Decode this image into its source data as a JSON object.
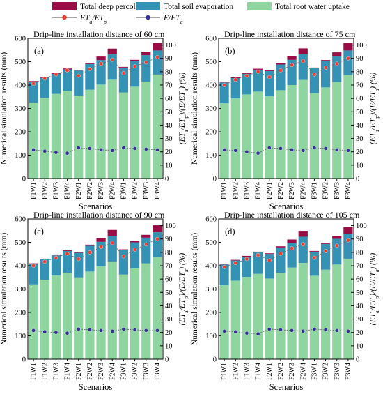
{
  "figure": {
    "legend": [
      {
        "label": "Total deep percolation",
        "kind": "swatch",
        "color": "#990c45"
      },
      {
        "label": "Total soil evaporation",
        "kind": "swatch",
        "color": "#3493b4"
      },
      {
        "label": "Total root water uptake",
        "kind": "swatch",
        "color": "#8fd5a0"
      },
      {
        "label": "ET_a/ET_p",
        "kind": "marker",
        "color": "#f03c2c"
      },
      {
        "label": "E/ET_a",
        "kind": "marker",
        "color": "#34309a"
      }
    ],
    "colors": {
      "deep_percolation": "#990c45",
      "soil_evaporation": "#3493b4",
      "root_uptake": "#8fd5a0",
      "eta_etp_marker": "#f03c2c",
      "e_eta_marker": "#34309a",
      "connector_line": "#6e6e6e"
    }
  },
  "chart_data": [
    {
      "type": "bar",
      "panel": "(a)",
      "title": "Drip-line installation distance of 60 cm",
      "xlabel": "Scenarios",
      "ylabel": "Numerical simulation results (mm)",
      "y2label_parts": [
        "(",
        "ET",
        "a",
        "/",
        "ET",
        "p",
        ")/(",
        "E/ET",
        "a",
        ") (%)"
      ],
      "ylim": [
        0,
        600
      ],
      "y_ticks": [
        0,
        100,
        200,
        300,
        400,
        500,
        600
      ],
      "y2lim": [
        0,
        105
      ],
      "y2_ticks": [
        0,
        10,
        20,
        30,
        40,
        50,
        60,
        70,
        80,
        90,
        100
      ],
      "categories": [
        "F1W1",
        "F1W2",
        "F1W3",
        "F1W4",
        "F2W1",
        "F2W2",
        "F2W3",
        "F2W4",
        "F3W1",
        "F3W2",
        "F3W3",
        "F3W4"
      ],
      "series": [
        {
          "name": "Total root water uptake",
          "values": [
            325,
            345,
            362,
            375,
            355,
            380,
            402,
            423,
            368,
            393,
            415,
            445
          ]
        },
        {
          "name": "Total soil evaporation",
          "values": [
            89,
            86,
            86,
            92,
            107,
            110,
            105,
            108,
            107,
            110,
            113,
            103
          ]
        },
        {
          "name": "Total deep percolation",
          "values": [
            3,
            4,
            5,
            4,
            3,
            5,
            15,
            25,
            3,
            5,
            15,
            32
          ]
        },
        {
          "name": "ET_a/ET_p",
          "axis": "y2",
          "values": [
            71,
            75,
            78,
            81,
            77,
            82,
            86,
            89,
            79,
            84,
            87,
            91
          ]
        },
        {
          "name": "E/ET_a",
          "axis": "y2",
          "values": [
            21.5,
            20.5,
            19.5,
            19,
            23,
            22.5,
            21.5,
            21,
            23,
            22.5,
            22,
            21.5
          ]
        }
      ]
    },
    {
      "type": "bar",
      "panel": "(b)",
      "title": "Drip-line installation distance of 75 cm",
      "xlabel": "Scenarios",
      "ylabel": "Numerical simulation results (mm)",
      "y2label_parts": [
        "(",
        "ET",
        "a",
        "/",
        "ET",
        "p",
        ")/(",
        "E/ET",
        "a",
        ") (%)"
      ],
      "ylim": [
        0,
        600
      ],
      "y_ticks": [
        0,
        100,
        200,
        300,
        400,
        500,
        600
      ],
      "y2lim": [
        0,
        105
      ],
      "y2_ticks": [
        0,
        10,
        20,
        30,
        40,
        50,
        60,
        70,
        80,
        90,
        100
      ],
      "categories": [
        "F1W1",
        "F1W2",
        "F1W3",
        "F1W4",
        "F2W1",
        "F2W2",
        "F2W3",
        "F2W4",
        "F3W1",
        "F3W2",
        "F3W3",
        "F3W4"
      ],
      "series": [
        {
          "name": "Total root water uptake",
          "values": [
            322,
            343,
            360,
            372,
            352,
            378,
            400,
            422,
            365,
            390,
            413,
            443
          ]
        },
        {
          "name": "Total soil evaporation",
          "values": [
            89,
            87,
            88,
            94,
            108,
            110,
            108,
            110,
            107,
            112,
            112,
            105
          ]
        },
        {
          "name": "Total deep percolation",
          "values": [
            2,
            3,
            4,
            4,
            3,
            5,
            15,
            25,
            3,
            5,
            15,
            32
          ]
        },
        {
          "name": "ET_a/ET_p",
          "axis": "y2",
          "values": [
            70,
            74,
            77,
            80,
            76,
            81,
            85,
            88,
            78,
            83,
            86,
            90
          ]
        },
        {
          "name": "E/ET_a",
          "axis": "y2",
          "values": [
            21.5,
            21,
            20,
            19,
            23,
            22.5,
            21.5,
            21,
            23,
            22.5,
            21.5,
            21
          ]
        }
      ]
    },
    {
      "type": "bar",
      "panel": "(c)",
      "title": "Drip-line installation distance of 90 cm",
      "xlabel": "Scenarios",
      "ylabel": "Numerical simulation results (mm)",
      "y2label_parts": [
        "(",
        "ET",
        "a",
        "/",
        "ET",
        "p",
        ")/(",
        "E/ET",
        "a",
        ") (%)"
      ],
      "ylim": [
        0,
        600
      ],
      "y_ticks": [
        0,
        100,
        200,
        300,
        400,
        500,
        600
      ],
      "y2lim": [
        0,
        105
      ],
      "y2_ticks": [
        0,
        10,
        20,
        30,
        40,
        50,
        60,
        70,
        80,
        90,
        100
      ],
      "categories": [
        "F1W1",
        "F1W2",
        "F1W3",
        "F1W4",
        "F2W1",
        "F2W2",
        "F2W3",
        "F2W4",
        "F3W1",
        "F3W2",
        "F3W3",
        "F3W4"
      ],
      "series": [
        {
          "name": "Total root water uptake",
          "values": [
            320,
            340,
            358,
            370,
            350,
            375,
            397,
            418,
            362,
            388,
            410,
            438
          ]
        },
        {
          "name": "Total soil evaporation",
          "values": [
            88,
            87,
            86,
            93,
            105,
            110,
            105,
            110,
            105,
            112,
            110,
            105
          ]
        },
        {
          "name": "Total deep percolation",
          "values": [
            2,
            3,
            4,
            3,
            3,
            5,
            15,
            25,
            3,
            5,
            12,
            30
          ]
        },
        {
          "name": "ET_a/ET_p",
          "axis": "y2",
          "values": [
            70,
            73,
            76,
            79,
            75,
            80,
            84,
            87,
            77,
            82,
            86,
            90
          ]
        },
        {
          "name": "E/ET_a",
          "axis": "y2",
          "values": [
            21.5,
            20.5,
            20,
            19.5,
            22.5,
            22,
            21.5,
            21,
            22.5,
            22,
            21.5,
            21.5
          ]
        }
      ]
    },
    {
      "type": "bar",
      "panel": "(d)",
      "title": "Drip-line installation distance of 105 cm",
      "xlabel": "Scenarios",
      "ylabel": "Numerical simulation results (mm)",
      "y2label_parts": [
        "(",
        "ET",
        "a",
        "/",
        "ET",
        "p",
        ")/(",
        "E/ET",
        "a",
        ") (%)"
      ],
      "ylim": [
        0,
        600
      ],
      "y_ticks": [
        0,
        100,
        200,
        300,
        400,
        500,
        600
      ],
      "y2lim": [
        0,
        105
      ],
      "y2_ticks": [
        0,
        10,
        20,
        30,
        40,
        50,
        60,
        70,
        80,
        90,
        100
      ],
      "categories": [
        "F1W1",
        "F1W2",
        "F1W3",
        "F1W4",
        "F2W1",
        "F2W2",
        "F2W3",
        "F2W4",
        "F3W1",
        "F3W2",
        "F3W3",
        "F3W4"
      ],
      "series": [
        {
          "name": "Total root water uptake",
          "values": [
            318,
            336,
            352,
            365,
            345,
            370,
            392,
            412,
            357,
            383,
            405,
            430
          ]
        },
        {
          "name": "Total soil evaporation",
          "values": [
            87,
            86,
            86,
            92,
            105,
            108,
            105,
            112,
            103,
            110,
            110,
            105
          ]
        },
        {
          "name": "Total deep percolation",
          "values": [
            2,
            3,
            4,
            3,
            3,
            5,
            15,
            25,
            3,
            5,
            12,
            30
          ]
        },
        {
          "name": "ET_a/ET_p",
          "axis": "y2",
          "values": [
            69,
            72,
            75,
            78,
            74,
            79,
            83,
            86,
            76,
            81,
            85,
            89
          ]
        },
        {
          "name": "E/ET_a",
          "axis": "y2",
          "values": [
            21,
            20.5,
            19.5,
            19,
            22.5,
            22,
            21.5,
            21,
            22.5,
            22,
            21.5,
            21
          ]
        }
      ]
    }
  ]
}
